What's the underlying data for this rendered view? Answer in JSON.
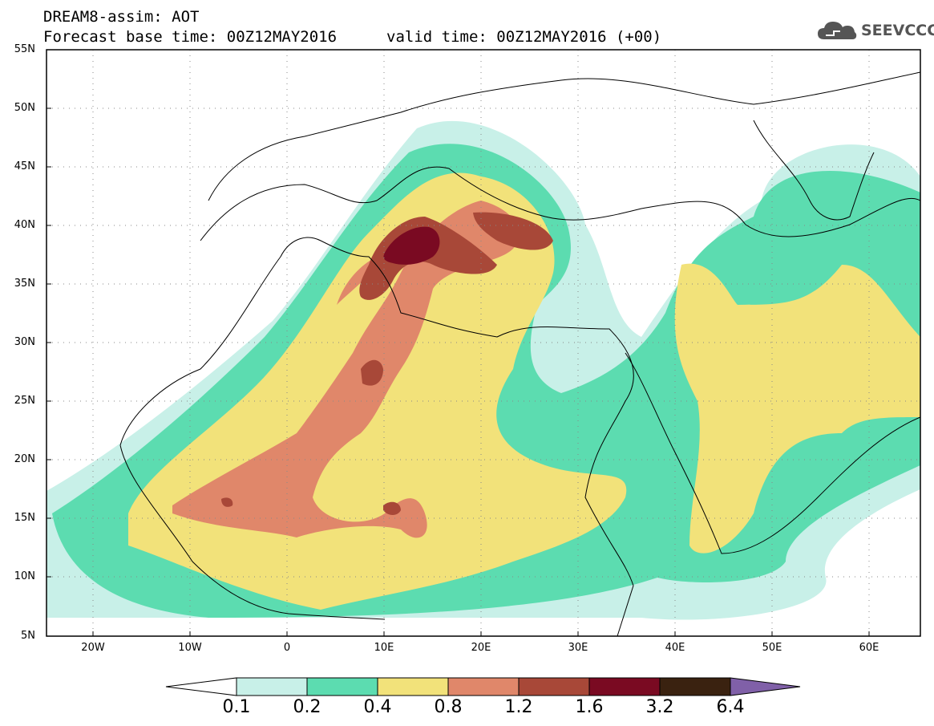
{
  "header": {
    "title": "DREAM8-assim: AOT",
    "base_time": "Forecast base time: 00Z12MAY2016",
    "valid_time": "valid time: 00Z12MAY2016 (+00)",
    "logo_text": "SEEVCCC",
    "logo_icon": "cloud-icon"
  },
  "map": {
    "lat_labels": [
      "55N",
      "50N",
      "45N",
      "40N",
      "35N",
      "30N",
      "25N",
      "20N",
      "15N",
      "10N",
      "5N"
    ],
    "lon_labels": [
      "20W",
      "10W",
      "0",
      "10E",
      "20E",
      "30E",
      "40E",
      "50E",
      "60E"
    ],
    "extent": {
      "lon_min": -25,
      "lon_max": 65,
      "lat_min": 5,
      "lat_max": 55
    },
    "grid": true
  },
  "colorbar": {
    "labels": [
      "0.1",
      "0.2",
      "0.4",
      "0.8",
      "1.2",
      "1.6",
      "3.2",
      "6.4"
    ],
    "colors": [
      "#ffffff",
      "#c8f0e8",
      "#5cdcb0",
      "#f2e27a",
      "#e0876a",
      "#a84838",
      "#7a0a22",
      "#3a2210",
      "#8060a8"
    ]
  }
}
